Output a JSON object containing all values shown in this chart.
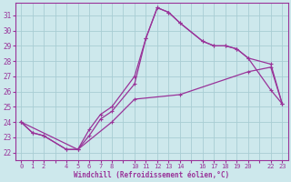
{
  "xlabel": "Windchill (Refroidissement éolien,°C)",
  "bg_color": "#cde8ec",
  "line_color": "#993399",
  "grid_color": "#a8cdd4",
  "ylim": [
    21.5,
    31.8
  ],
  "xlim": [
    -0.5,
    23.5
  ],
  "yticks": [
    22,
    23,
    24,
    25,
    26,
    27,
    28,
    29,
    30,
    31
  ],
  "xtick_labels": [
    "0",
    "1",
    "2",
    "",
    "4",
    "5",
    "6",
    "7",
    "8",
    "",
    "10",
    "11",
    "12",
    "13",
    "14",
    "",
    "16",
    "17",
    "18",
    "19",
    "20",
    "",
    "22",
    "23"
  ],
  "xtick_positions": [
    0,
    1,
    2,
    3,
    4,
    5,
    6,
    7,
    8,
    9,
    10,
    11,
    12,
    13,
    14,
    15,
    16,
    17,
    18,
    19,
    20,
    21,
    22,
    23
  ],
  "line1_x": [
    0,
    1,
    2,
    4,
    5,
    6,
    7,
    8,
    10,
    11,
    12,
    13,
    14,
    16,
    17,
    18,
    19,
    20,
    22,
    23
  ],
  "line1_y": [
    24.0,
    23.3,
    23.1,
    22.2,
    22.2,
    23.5,
    24.5,
    25.0,
    27.0,
    29.5,
    31.5,
    31.2,
    30.5,
    29.3,
    29.0,
    29.0,
    28.8,
    28.2,
    27.8,
    25.2
  ],
  "line2_x": [
    0,
    1,
    2,
    4,
    5,
    6,
    7,
    8,
    10,
    11,
    12,
    13,
    14,
    16,
    17,
    18,
    19,
    20,
    22,
    23
  ],
  "line2_y": [
    24.0,
    23.3,
    23.1,
    22.2,
    22.2,
    23.1,
    24.2,
    24.7,
    26.5,
    29.5,
    31.5,
    31.2,
    30.5,
    29.3,
    29.0,
    29.0,
    28.8,
    28.2,
    26.1,
    25.2
  ],
  "line3_x": [
    0,
    5,
    8,
    10,
    14,
    20,
    22,
    23
  ],
  "line3_y": [
    24.0,
    22.2,
    24.0,
    25.5,
    25.8,
    27.3,
    27.6,
    25.2
  ]
}
